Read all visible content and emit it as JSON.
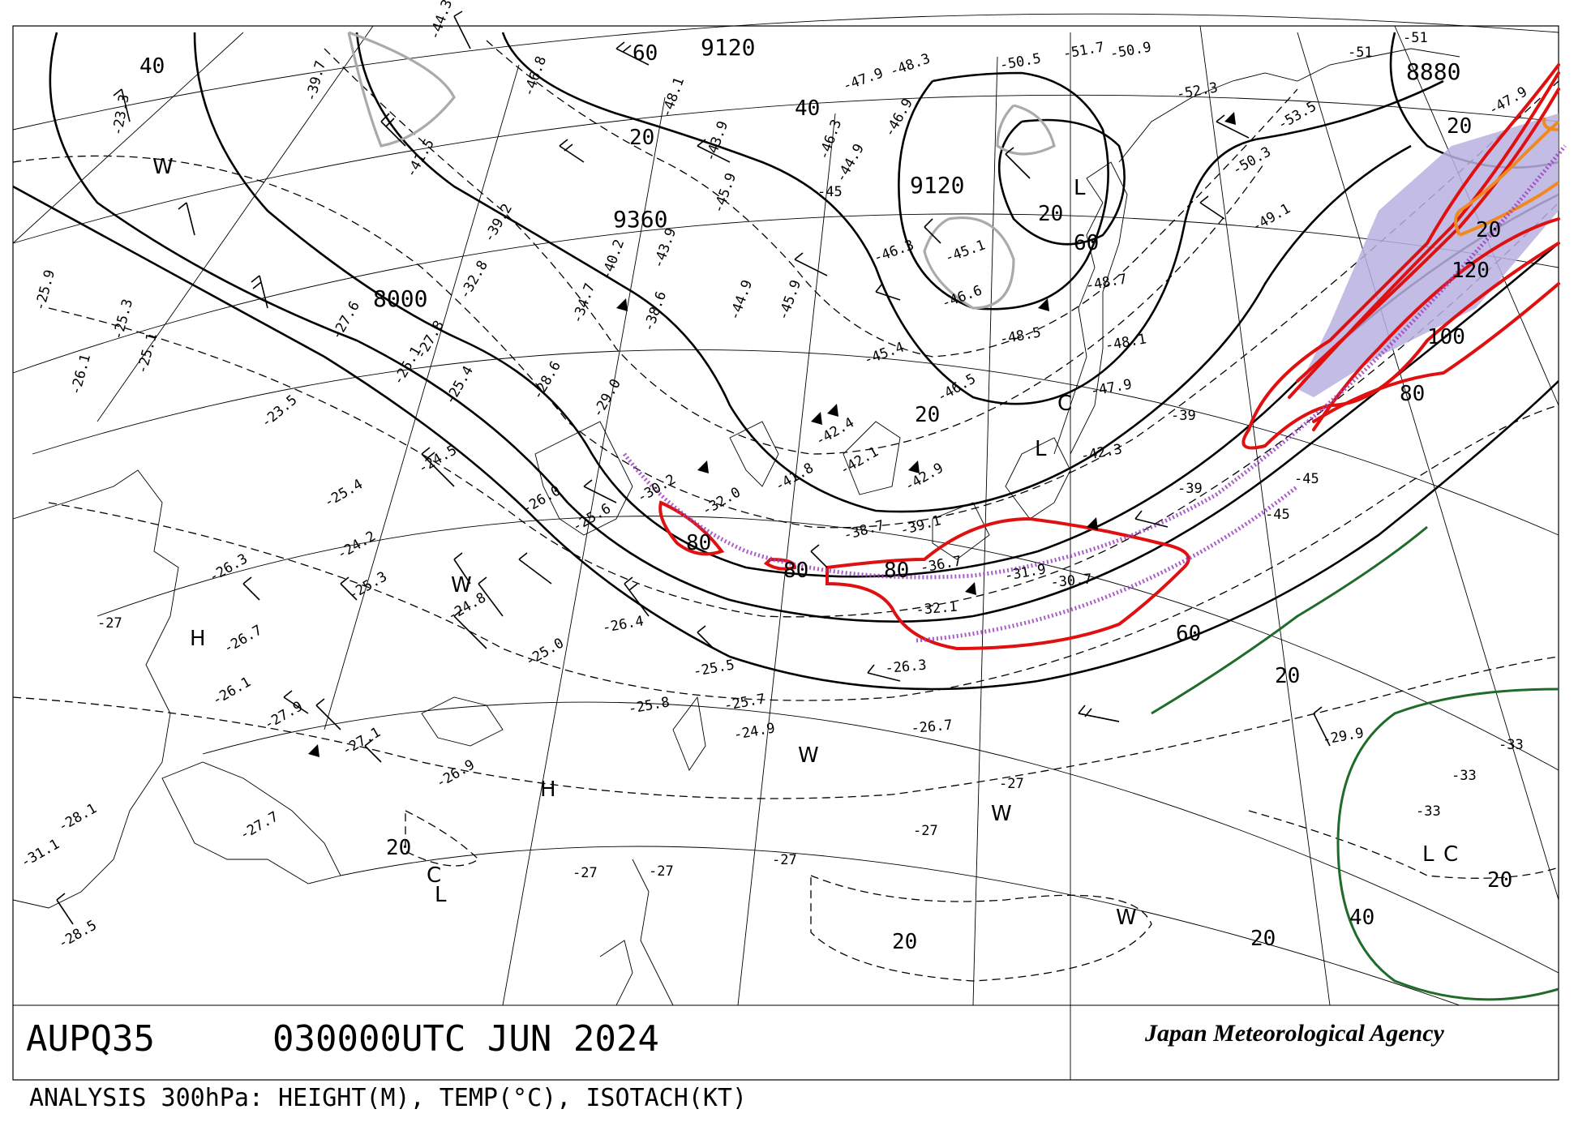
{
  "header": {
    "code": "AUPQ35",
    "datetime": "030000UTC JUN 2024",
    "agency": "Japan Meteorological Agency"
  },
  "footer": {
    "description": "ANALYSIS 300hPa: HEIGHT(M), TEMP(°C), ISOTACH(KT)"
  },
  "height_labels": [
    "9120",
    "9360",
    "9120",
    "8880",
    "8000"
  ],
  "isotach_labels": [
    "40",
    "20",
    "60",
    "40",
    "20",
    "60",
    "80",
    "80",
    "80",
    "100",
    "120",
    "80",
    "60",
    "20",
    "20",
    "20",
    "20",
    "20",
    "40",
    "20",
    "20",
    "20"
  ],
  "temperature_labels": [
    "-23.3",
    "-25.9",
    "-25.3",
    "-25.1",
    "-26.1",
    "-23.5",
    "-25.4",
    "-24.5",
    "-24.2",
    "-25.3",
    "-26.3",
    "-26.7",
    "-26.1",
    "-27.9",
    "-27.1",
    "-28.1",
    "-28.5",
    "-31.1",
    "-27.7",
    "-26.9",
    "-39.7",
    "-41.5",
    "-39.2",
    "-32.8",
    "-27.6",
    "-27.8",
    "-25.1",
    "-25.4",
    "-28.6",
    "-29.0",
    "-30.2",
    "-32.0",
    "-41.8",
    "-42.4",
    "-42.1",
    "-42.9",
    "-38.7",
    "-39.1",
    "-36.7",
    "-31.9",
    "-30.7",
    "-32.1",
    "-26.3",
    "-26.7",
    "-25.7",
    "-24.9",
    "-25.5",
    "-25.8",
    "-26.4",
    "-25.0",
    "-24.8",
    "-25.6",
    "-26.0",
    "-44.3",
    "-46.8",
    "-48.1",
    "-48.3",
    "-47.9",
    "-46.9",
    "-44.9",
    "-46.3",
    "-43.9",
    "-45.9",
    "-40.2",
    "-43.9",
    "-38.6",
    "-34.7",
    "-44.9",
    "-45.9",
    "-45.4",
    "-46.5",
    "-46.3",
    "-45.1",
    "-46.6",
    "-48.5",
    "-48.1",
    "-47.9",
    "-42.3",
    "-50.5",
    "-51.7",
    "-50.9",
    "-52.3",
    "-53.5",
    "-50.3",
    "-49.1",
    "-48.7",
    "-47.9",
    "-29.9",
    "-39",
    "-33",
    "-27",
    "-45",
    "-51"
  ],
  "pressure_centers": [
    "H",
    "H",
    "L",
    "L",
    "L",
    "L",
    "C",
    "C",
    "C",
    "W",
    "W",
    "W",
    "W",
    "W"
  ],
  "colors": {
    "jet_axis": "#9b3fc0",
    "jet_core_fill": "#b8b0e0",
    "isotach_red": "#e01010",
    "isotach_orange": "#f08a20",
    "isotach_green": "#1f6b2a",
    "gray_contour": "#aaaaaa"
  }
}
